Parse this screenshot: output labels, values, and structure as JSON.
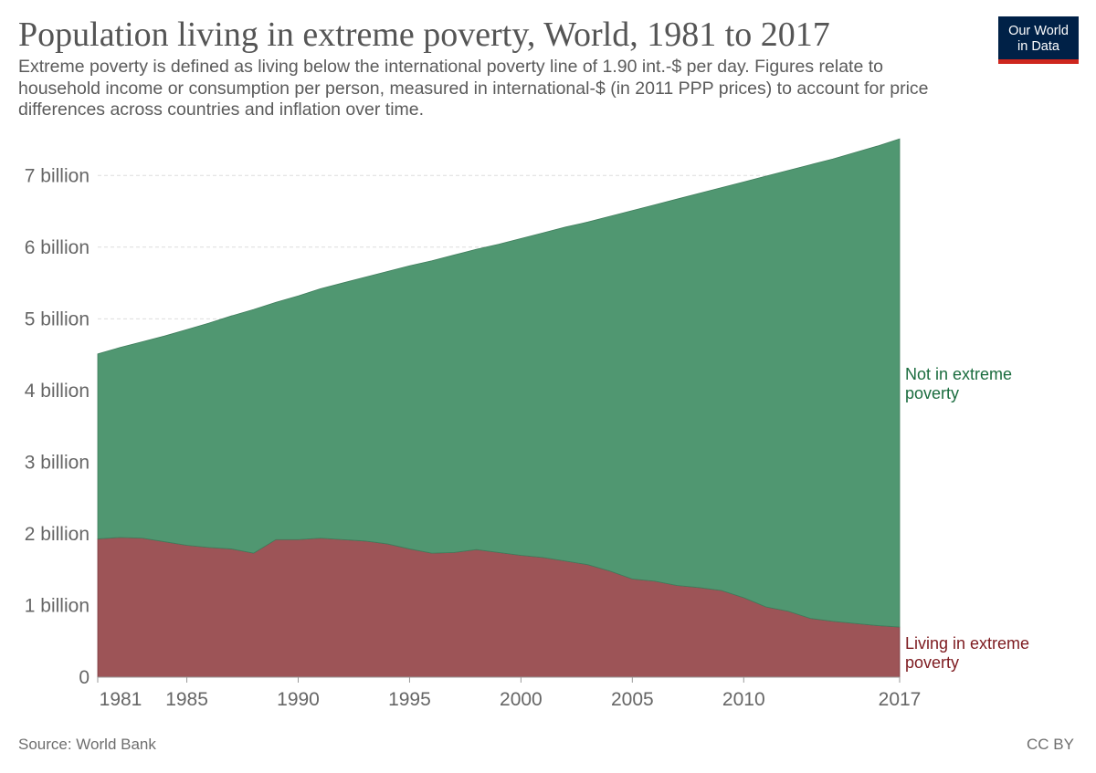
{
  "header": {
    "title": "Population living in extreme poverty, World, 1981 to 2017",
    "subtitle": "Extreme poverty is defined as living below the international poverty line of 1.90 int.-$ per day. Figures relate to household income or consumption per person, measured in international-$ (in 2011 PPP prices) to account for price differences across countries and inflation over time."
  },
  "logo": {
    "line1": "Our World",
    "line2": "in Data"
  },
  "footer": {
    "source": "Source: World Bank",
    "license": "CC BY"
  },
  "colors": {
    "not_poor": "#509771",
    "poor": "#9d5457",
    "not_poor_label": "#1a6c3e",
    "poor_label": "#7d1a1f"
  },
  "chart_data": {
    "type": "area",
    "stacked": true,
    "title": "Population living in extreme poverty, World, 1981 to 2017",
    "xlabel": "",
    "ylabel": "",
    "xlim": [
      1981,
      2017
    ],
    "ylim": [
      0,
      7500000000
    ],
    "x": [
      1981,
      1982,
      1983,
      1984,
      1985,
      1986,
      1987,
      1988,
      1989,
      1990,
      1991,
      1992,
      1993,
      1994,
      1995,
      1996,
      1997,
      1998,
      1999,
      2000,
      2001,
      2002,
      2003,
      2004,
      2005,
      2006,
      2007,
      2008,
      2009,
      2010,
      2011,
      2012,
      2013,
      2014,
      2015,
      2016,
      2017
    ],
    "series": [
      {
        "name": "Living in extreme poverty",
        "label_lines": [
          "Living in extreme",
          "poverty"
        ],
        "color": "#9d5457",
        "values": [
          1.93,
          1.95,
          1.94,
          1.89,
          1.84,
          1.81,
          1.79,
          1.73,
          1.92,
          1.92,
          1.94,
          1.92,
          1.9,
          1.86,
          1.79,
          1.73,
          1.74,
          1.78,
          1.74,
          1.7,
          1.67,
          1.62,
          1.57,
          1.48,
          1.37,
          1.34,
          1.28,
          1.25,
          1.21,
          1.11,
          0.98,
          0.92,
          0.82,
          0.78,
          0.75,
          0.72,
          0.7
        ]
      },
      {
        "name": "Not in extreme poverty",
        "label_lines": [
          "Not in extreme",
          "poverty"
        ],
        "color": "#509771",
        "values": [
          2.58,
          2.65,
          2.74,
          2.87,
          3.01,
          3.13,
          3.25,
          3.4,
          3.31,
          3.4,
          3.48,
          3.58,
          3.68,
          3.8,
          3.95,
          4.08,
          4.15,
          4.19,
          4.3,
          4.42,
          4.53,
          4.66,
          4.78,
          4.95,
          5.14,
          5.25,
          5.39,
          5.5,
          5.62,
          5.8,
          6.01,
          6.15,
          6.33,
          6.45,
          6.57,
          6.69,
          6.81
        ]
      }
    ],
    "value_unit": "billion",
    "y_ticks": [
      0,
      1,
      2,
      3,
      4,
      5,
      6,
      7
    ],
    "y_tick_labels": [
      "0",
      "1 billion",
      "2 billion",
      "3 billion",
      "4 billion",
      "5 billion",
      "6 billion",
      "7 billion"
    ],
    "x_ticks": [
      1981,
      1985,
      1990,
      1995,
      2000,
      2005,
      2010,
      2017
    ],
    "x_tick_labels": [
      "1981",
      "1985",
      "1990",
      "1995",
      "2000",
      "2005",
      "2010",
      "2017"
    ],
    "grid": true
  }
}
